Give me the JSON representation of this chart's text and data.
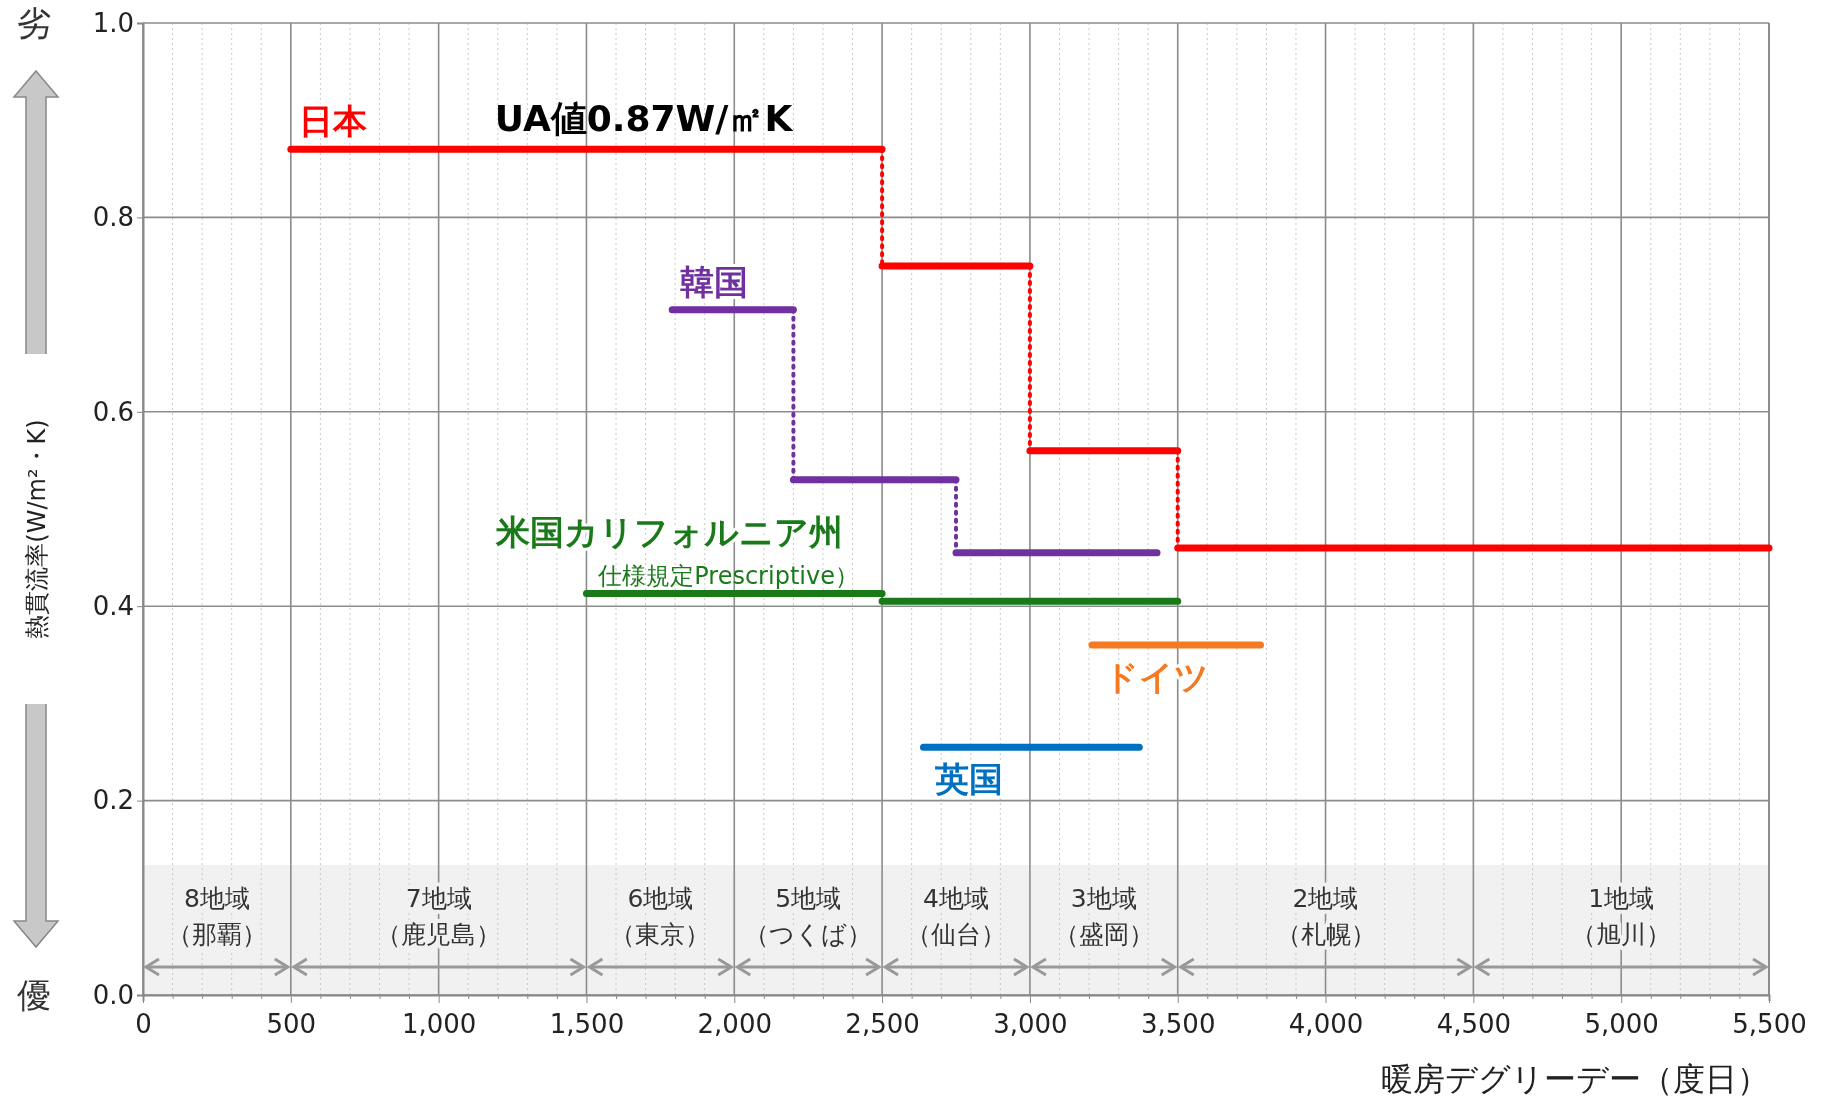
{
  "chart_data": {
    "type": "step",
    "xlabel": "暖房デグリーデー（度日）",
    "ylabel": "熱貫流率(W/m²・K)",
    "xlim": [
      0,
      5500
    ],
    "ylim": [
      0,
      1
    ],
    "xticks": [
      0,
      {
        "value": 100,
        "label": null
      },
      {
        "value": 200,
        "label": null
      },
      {
        "value": 300,
        "label": null
      },
      {
        "value": 400,
        "label": null
      },
      500,
      {
        "value": 600,
        "label": null
      },
      {
        "value": 700,
        "label": null
      },
      {
        "value": 800,
        "label": null
      },
      {
        "value": 900,
        "label": null
      },
      {
        "value": 1000,
        "label": "1,000"
      },
      {
        "value": 1100,
        "label": null
      },
      {
        "value": 1200,
        "label": null
      },
      {
        "value": 1300,
        "label": null
      },
      {
        "value": 1400,
        "label": null
      },
      {
        "value": 1500,
        "label": "1,500"
      },
      {
        "value": 1600,
        "label": null
      },
      {
        "value": 1700,
        "label": null
      },
      {
        "value": 1800,
        "label": null
      },
      {
        "value": 1900,
        "label": null
      },
      {
        "value": 2000,
        "label": "2,000"
      },
      {
        "value": 2100,
        "label": null
      },
      {
        "value": 2200,
        "label": null
      },
      {
        "value": 2300,
        "label": null
      },
      {
        "value": 2400,
        "label": null
      },
      {
        "value": 2500,
        "label": "2,500"
      },
      {
        "value": 2600,
        "label": null
      },
      {
        "value": 2700,
        "label": null
      },
      {
        "value": 2800,
        "label": null
      },
      {
        "value": 2900,
        "label": null
      },
      {
        "value": 3000,
        "label": "3,000"
      },
      {
        "value": 3100,
        "label": null
      },
      {
        "value": 3200,
        "label": null
      },
      {
        "value": 3300,
        "label": null
      },
      {
        "value": 3400,
        "label": null
      },
      {
        "value": 3500,
        "label": "3,500"
      },
      {
        "value": 3600,
        "label": null
      },
      {
        "value": 3700,
        "label": null
      },
      {
        "value": 3800,
        "label": null
      },
      {
        "value": 3900,
        "label": null
      },
      {
        "value": 4000,
        "label": "4,000"
      },
      {
        "value": 4100,
        "label": null
      },
      {
        "value": 4200,
        "label": null
      },
      {
        "value": 4300,
        "label": null
      },
      {
        "value": 4400,
        "label": null
      },
      {
        "value": 4500,
        "label": "4,500"
      },
      {
        "value": 4600,
        "label": null
      },
      {
        "value": 4700,
        "label": null
      },
      {
        "value": 4800,
        "label": null
      },
      {
        "value": 4900,
        "label": null
      },
      {
        "value": 5000,
        "label": "5,000"
      },
      {
        "value": 5100,
        "label": null
      },
      {
        "value": 5200,
        "label": null
      },
      {
        "value": 5300,
        "label": null
      },
      {
        "value": 5400,
        "label": null
      },
      {
        "value": 5500,
        "label": "5,500"
      }
    ],
    "yticks": [
      {
        "value": 0,
        "label": "0.0"
      },
      0.2,
      0.4,
      0.6,
      0.8,
      {
        "value": 1,
        "label": "1.0"
      }
    ],
    "grid": true,
    "series": [
      {
        "name": "日本",
        "color": "#ff0000",
        "x": [
          500,
          2500,
          3000,
          3500,
          5500
        ],
        "values": [
          0.87,
          0.75,
          0.56,
          0.46,
          0.46
        ]
      },
      {
        "name": "韓国",
        "color": "#7030a0",
        "x": [
          1790,
          2200,
          2750,
          3430
        ],
        "values": [
          0.705,
          0.53,
          0.455,
          0.455
        ]
      },
      {
        "name": "米国カリフォルニア州",
        "color": "#1a7a1a",
        "x": [
          1500,
          2500,
          3500
        ],
        "values": [
          0.413,
          0.405,
          0.405
        ]
      },
      {
        "name": "ドイツ",
        "color": "#f47920",
        "x": [
          3210,
          3780
        ],
        "values": [
          0.36,
          0.36
        ]
      },
      {
        "name": "英国",
        "color": "#0070c0",
        "x": [
          2640,
          3370
        ],
        "values": [
          0.255,
          0.255
        ]
      }
    ],
    "annotations": [
      "劣",
      "優",
      {
        "text": "UA値0.87W/㎡K",
        "x": 1190,
        "y": 0.87
      },
      {
        "text": "仕様規定Prescriptive）",
        "x": 1540,
        "y": 0.413
      }
    ],
    "bands": [
      {
        "axis": "x",
        "from": 0,
        "to": 500,
        "label": "8地域（那覇）"
      },
      {
        "axis": "x",
        "from": 500,
        "to": 1500,
        "label": "7地域（鹿児島）"
      },
      {
        "axis": "x",
        "from": 1500,
        "to": 2000,
        "label": "6地域（東京）"
      },
      {
        "axis": "x",
        "from": 2000,
        "to": 2500,
        "label": "5地域（つくば）"
      },
      {
        "axis": "x",
        "from": 2500,
        "to": 3000,
        "label": "4地域（仙台）"
      },
      {
        "axis": "x",
        "from": 3000,
        "to": 3500,
        "label": "3地域（盛岡）"
      },
      {
        "axis": "x",
        "from": 3500,
        "to": 4500,
        "label": "2地域（札幌）"
      },
      {
        "axis": "x",
        "from": 4500,
        "to": 5500,
        "label": "1地域（旭川）"
      }
    ]
  }
}
